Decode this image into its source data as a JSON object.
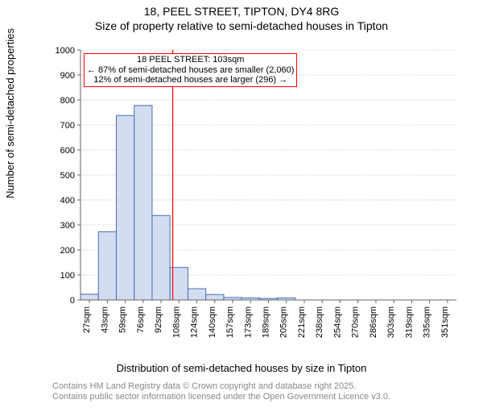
{
  "title_line1": "18, PEEL STREET, TIPTON, DY4 8RG",
  "title_line2": "Size of property relative to semi-detached houses in Tipton",
  "ylabel": "Number of semi-detached properties",
  "xlabel": "Distribution of semi-detached houses by size in Tipton",
  "footer_line1": "Contains HM Land Registry data © Crown copyright and database right 2025.",
  "footer_line2": "Contains public sector information licensed under the Open Government Licence v3.0.",
  "annotation": {
    "line1": "18 PEEL STREET: 103sqm",
    "line2": "← 87% of semi-detached houses are smaller (2,060)",
    "line3": "12% of semi-detached houses are larger (296) →"
  },
  "chart": {
    "type": "histogram",
    "bar_fill": "#d3ddf2",
    "bar_stroke": "#4a6db0",
    "grid_color": "#999999",
    "axis_color": "#666666",
    "marker_line_color": "#ff0000",
    "marker_x": 103,
    "background_color": "#ffffff",
    "ylim": [
      0,
      1000
    ],
    "ytick_step": 100,
    "yticks": [
      0,
      100,
      200,
      300,
      400,
      500,
      600,
      700,
      800,
      900,
      1000
    ],
    "x_start": 19,
    "x_step": 16.3,
    "x_bin_count": 21,
    "x_labels": [
      "27sqm",
      "43sqm",
      "59sqm",
      "76sqm",
      "92sqm",
      "108sqm",
      "124sqm",
      "140sqm",
      "157sqm",
      "173sqm",
      "189sqm",
      "205sqm",
      "221sqm",
      "238sqm",
      "254sqm",
      "270sqm",
      "286sqm",
      "303sqm",
      "319sqm",
      "335sqm",
      "351sqm"
    ],
    "values": [
      23,
      273,
      738,
      778,
      338,
      130,
      45,
      22,
      10,
      8,
      6,
      8,
      0,
      0,
      0,
      0,
      0,
      0,
      0,
      0,
      0
    ],
    "tick_fontsize": 11,
    "label_fontsize": 13,
    "title_fontsize": 14
  }
}
